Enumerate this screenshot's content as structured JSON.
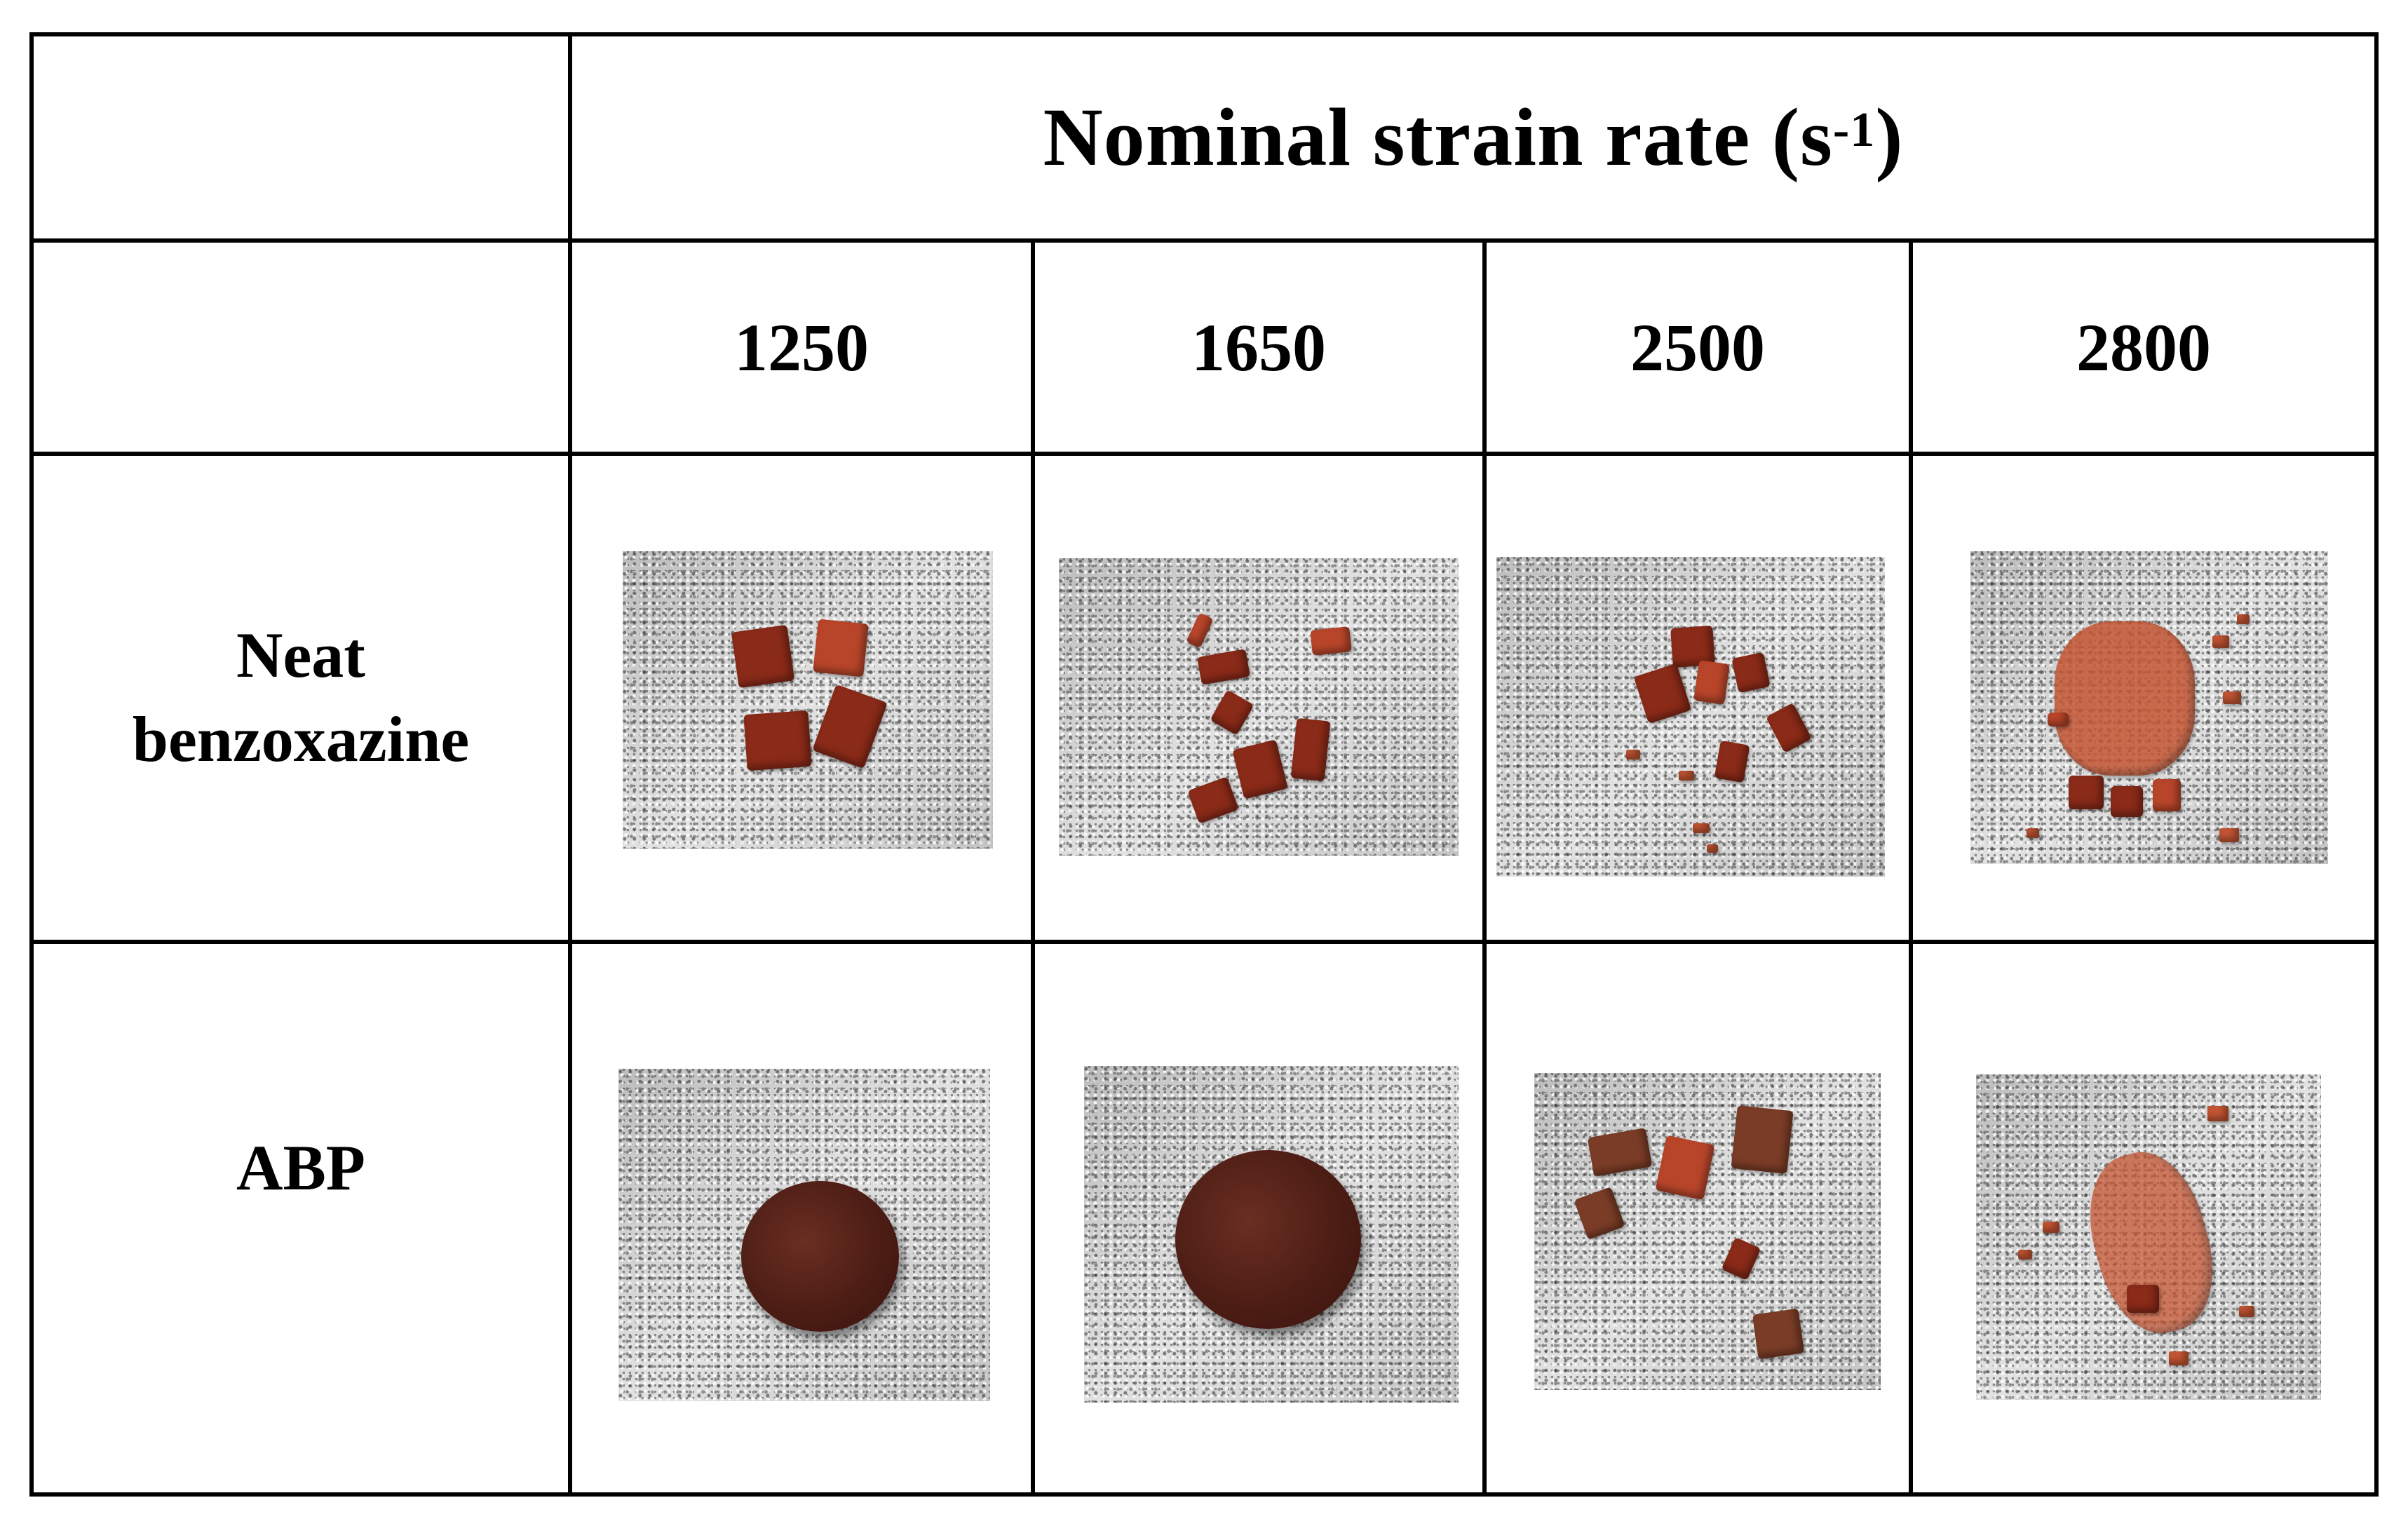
{
  "table": {
    "header": {
      "title_main": "Nominal strain rate (s",
      "title_sup": "-1",
      "title_close": ")"
    },
    "strain_rates": [
      "1250",
      "1650",
      "2500",
      "2800"
    ],
    "rows": [
      {
        "label_line1": "Neat",
        "label_line2": "benzoxazine"
      },
      {
        "label_line1": "ABP",
        "label_line2": ""
      }
    ]
  }
}
